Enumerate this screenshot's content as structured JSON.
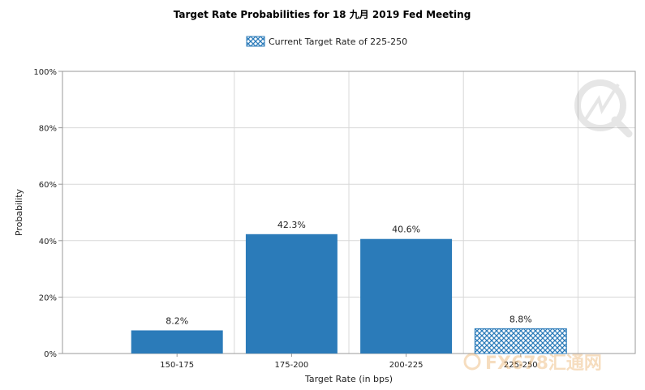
{
  "chart_data": {
    "type": "bar",
    "title": "Target Rate Probabilities for 18 九月 2019 Fed Meeting",
    "legend": {
      "entry": "Current Target Rate of 225-250",
      "placement": "top-center"
    },
    "xlabel": "Target Rate (in bps)",
    "ylabel": "Probability",
    "categories": [
      "150-175",
      "175-200",
      "200-225",
      "225-250"
    ],
    "values": [
      8.2,
      42.3,
      40.6,
      8.8
    ],
    "value_labels": [
      "8.2%",
      "42.3%",
      "40.6%",
      "8.8%"
    ],
    "highlighted_category": "225-250",
    "ylim": [
      0,
      100
    ],
    "yticks": [
      "0%",
      "20%",
      "40%",
      "60%",
      "80%",
      "100%"
    ],
    "ytick_values": [
      0,
      20,
      40,
      60,
      80,
      100
    ],
    "grid": true,
    "colors": {
      "bar": "#2b7bb9",
      "grid": "#d8d8d8",
      "axis": "#999999"
    }
  },
  "watermark": {
    "text": "FX678汇通网"
  }
}
